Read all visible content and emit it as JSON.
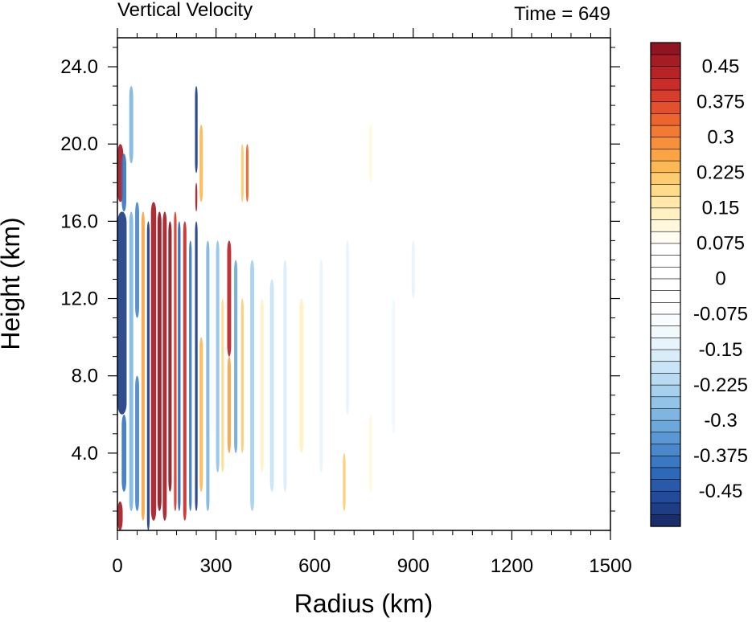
{
  "chart_data": {
    "type": "heatmap",
    "title": "Vertical Velocity",
    "subtitle": "Time = 649",
    "xlabel": "Radius (km)",
    "ylabel": "Height (km)",
    "xlim": [
      0,
      1500
    ],
    "ylim": [
      0,
      25.5
    ],
    "x_ticks": [
      0,
      300,
      600,
      900,
      1200,
      1500
    ],
    "x_tick_labels": [
      "0",
      "300",
      "600",
      "900",
      "1200",
      "1500"
    ],
    "y_ticks": [
      4,
      8,
      12,
      16,
      20,
      24
    ],
    "y_tick_labels": [
      "4.0",
      "8.0",
      "12.0",
      "16.0",
      "20.0",
      "24.0"
    ],
    "colorbar": {
      "levels": [
        -0.525,
        -0.5,
        -0.475,
        -0.45,
        -0.425,
        -0.4,
        -0.375,
        -0.35,
        -0.325,
        -0.3,
        -0.275,
        -0.25,
        -0.225,
        -0.2,
        -0.175,
        -0.15,
        -0.125,
        -0.1,
        -0.075,
        -0.05,
        -0.025,
        0,
        0.025,
        0.05,
        0.075,
        0.1,
        0.125,
        0.15,
        0.175,
        0.2,
        0.225,
        0.25,
        0.275,
        0.3,
        0.325,
        0.35,
        0.375,
        0.4,
        0.425,
        0.45,
        0.475,
        0.5
      ],
      "labels": [
        "0.45",
        "0.375",
        "0.3",
        "0.225",
        "0.15",
        "0.075",
        "0",
        "-0.075",
        "-0.15",
        "-0.225",
        "-0.3",
        "-0.375",
        "-0.45"
      ],
      "label_values": [
        0.45,
        0.375,
        0.3,
        0.225,
        0.15,
        0.075,
        0,
        -0.075,
        -0.15,
        -0.225,
        -0.3,
        -0.375,
        -0.45
      ],
      "colors": [
        "#1a2e6b",
        "#1f3d85",
        "#224b9c",
        "#2859ab",
        "#2e68b8",
        "#3a78c2",
        "#4a88cb",
        "#5b98d3",
        "#6ca8da",
        "#7fb6e1",
        "#93c4e8",
        "#a6d0ee",
        "#b8dbf2",
        "#c9e4f6",
        "#d9edf9",
        "#e7f4fb",
        "#f1f9fd",
        "#f8fcfe",
        "#ffffff",
        "#ffffff",
        "#ffffff",
        "#ffffff",
        "#ffffff",
        "#ffffff",
        "#fffdf2",
        "#fff8dc",
        "#fff1c4",
        "#ffe8a8",
        "#fedc8c",
        "#fdcc70",
        "#fcb854",
        "#fba445",
        "#f88f3b",
        "#f37a34",
        "#ec652f",
        "#e2512c",
        "#d63d2b",
        "#c92d2a",
        "#b82328",
        "#a51c25",
        "#8f1620"
      ]
    },
    "features": [
      {
        "type": "core",
        "r_min": 0,
        "r_max": 28,
        "color": "#1f3d85",
        "z_ranges": [
          [
            6,
            16.5
          ]
        ]
      },
      {
        "type": "core",
        "r_min": 0,
        "r_max": 18,
        "color": "#a51c25",
        "z_ranges": [
          [
            17,
            20
          ]
        ]
      },
      {
        "type": "core",
        "r_min": 0,
        "r_max": 16,
        "color": "#a51c25",
        "z_ranges": [
          [
            0,
            1.5
          ]
        ]
      },
      {
        "type": "band",
        "r": 20,
        "width": 14,
        "color": "#3a78c2",
        "z_ranges": [
          [
            16.5,
            19.5
          ],
          [
            2,
            6
          ]
        ]
      },
      {
        "type": "band",
        "r": 42,
        "width": 12,
        "color": "#7fb6e1",
        "z_ranges": [
          [
            1,
            16.5
          ],
          [
            19,
            23
          ]
        ]
      },
      {
        "type": "band",
        "r": 60,
        "width": 12,
        "color": "#4a88cb",
        "z_ranges": [
          [
            1,
            8
          ],
          [
            11,
            17
          ]
        ]
      },
      {
        "type": "band",
        "r": 78,
        "width": 10,
        "color": "#fba445",
        "z_ranges": [
          [
            0.5,
            16.5
          ]
        ]
      },
      {
        "type": "band",
        "r": 94,
        "width": 8,
        "color": "#1f3d85",
        "z_ranges": [
          [
            0,
            16
          ]
        ]
      },
      {
        "type": "band",
        "r": 110,
        "width": 16,
        "color": "#a51c25",
        "z_ranges": [
          [
            0.5,
            17
          ]
        ]
      },
      {
        "type": "band",
        "r": 128,
        "width": 12,
        "color": "#8f1620",
        "z_ranges": [
          [
            1,
            16.5
          ]
        ]
      },
      {
        "type": "band",
        "r": 144,
        "width": 12,
        "color": "#a51c25",
        "z_ranges": [
          [
            0.5,
            16.5
          ]
        ]
      },
      {
        "type": "band",
        "r": 160,
        "width": 10,
        "color": "#8f1620",
        "z_ranges": [
          [
            2,
            16
          ]
        ]
      },
      {
        "type": "band",
        "r": 176,
        "width": 8,
        "color": "#d63d2b",
        "z_ranges": [
          [
            1,
            16.5
          ]
        ]
      },
      {
        "type": "band",
        "r": 188,
        "width": 8,
        "color": "#2e68b8",
        "z_ranges": [
          [
            1,
            16
          ]
        ]
      },
      {
        "type": "band",
        "r": 205,
        "width": 10,
        "color": "#c92d2a",
        "z_ranges": [
          [
            0.5,
            16
          ]
        ]
      },
      {
        "type": "band",
        "r": 222,
        "width": 8,
        "color": "#3a78c2",
        "z_ranges": [
          [
            1,
            15
          ]
        ]
      },
      {
        "type": "band",
        "r": 240,
        "width": 8,
        "color": "#1f3d85",
        "z_ranges": [
          [
            1,
            16
          ],
          [
            18.5,
            23
          ]
        ]
      },
      {
        "type": "band",
        "r": 240,
        "width": 6,
        "color": "#a51c25",
        "z_ranges": [
          [
            16.5,
            18
          ]
        ]
      },
      {
        "type": "band",
        "r": 255,
        "width": 10,
        "color": "#fcb854",
        "z_ranges": [
          [
            2,
            10
          ],
          [
            17,
            21
          ]
        ]
      },
      {
        "type": "band",
        "r": 275,
        "width": 10,
        "color": "#7fb6e1",
        "z_ranges": [
          [
            1,
            15
          ]
        ]
      },
      {
        "type": "band",
        "r": 290,
        "width": 8,
        "color": "#f8fcfe",
        "z_ranges": [
          [
            5,
            15
          ]
        ]
      },
      {
        "type": "band",
        "r": 305,
        "width": 10,
        "color": "#93c4e8",
        "z_ranges": [
          [
            3,
            15
          ]
        ]
      },
      {
        "type": "band",
        "r": 320,
        "width": 8,
        "color": "#fedc8c",
        "z_ranges": [
          [
            3,
            12
          ]
        ]
      },
      {
        "type": "band",
        "r": 340,
        "width": 12,
        "color": "#b82328",
        "z_ranges": [
          [
            9,
            15
          ]
        ]
      },
      {
        "type": "band",
        "r": 340,
        "width": 10,
        "color": "#fba445",
        "z_ranges": [
          [
            4,
            9
          ]
        ]
      },
      {
        "type": "band",
        "r": 360,
        "width": 10,
        "color": "#6ca8da",
        "z_ranges": [
          [
            4,
            14
          ]
        ]
      },
      {
        "type": "band",
        "r": 380,
        "width": 8,
        "color": "#fdcc70",
        "z_ranges": [
          [
            4,
            12
          ],
          [
            17,
            20
          ]
        ]
      },
      {
        "type": "band",
        "r": 395,
        "width": 8,
        "color": "#ec652f",
        "z_ranges": [
          [
            17,
            20
          ]
        ]
      },
      {
        "type": "band",
        "r": 410,
        "width": 12,
        "color": "#a6d0ee",
        "z_ranges": [
          [
            1,
            14
          ]
        ]
      },
      {
        "type": "band",
        "r": 440,
        "width": 10,
        "color": "#fff1c4",
        "z_ranges": [
          [
            3,
            12
          ]
        ]
      },
      {
        "type": "band",
        "r": 470,
        "width": 12,
        "color": "#c9e4f6",
        "z_ranges": [
          [
            2,
            13
          ]
        ]
      },
      {
        "type": "band",
        "r": 510,
        "width": 10,
        "color": "#d9edf9",
        "z_ranges": [
          [
            2,
            14
          ]
        ]
      },
      {
        "type": "band",
        "r": 560,
        "width": 12,
        "color": "#fff1c4",
        "z_ranges": [
          [
            4,
            12
          ]
        ]
      },
      {
        "type": "band",
        "r": 620,
        "width": 10,
        "color": "#e7f4fb",
        "z_ranges": [
          [
            3,
            14
          ]
        ]
      },
      {
        "type": "band",
        "r": 690,
        "width": 8,
        "color": "#fdcc70",
        "z_ranges": [
          [
            1,
            4
          ]
        ]
      },
      {
        "type": "band",
        "r": 700,
        "width": 10,
        "color": "#e7f4fb",
        "z_ranges": [
          [
            6,
            15
          ]
        ]
      },
      {
        "type": "band",
        "r": 770,
        "width": 10,
        "color": "#fff8dc",
        "z_ranges": [
          [
            18,
            21
          ],
          [
            2,
            6
          ]
        ]
      },
      {
        "type": "band",
        "r": 840,
        "width": 10,
        "color": "#f1f9fd",
        "z_ranges": [
          [
            5,
            12
          ]
        ]
      },
      {
        "type": "band",
        "r": 900,
        "width": 10,
        "color": "#e7f4fb",
        "z_ranges": [
          [
            12,
            15
          ]
        ]
      }
    ]
  }
}
